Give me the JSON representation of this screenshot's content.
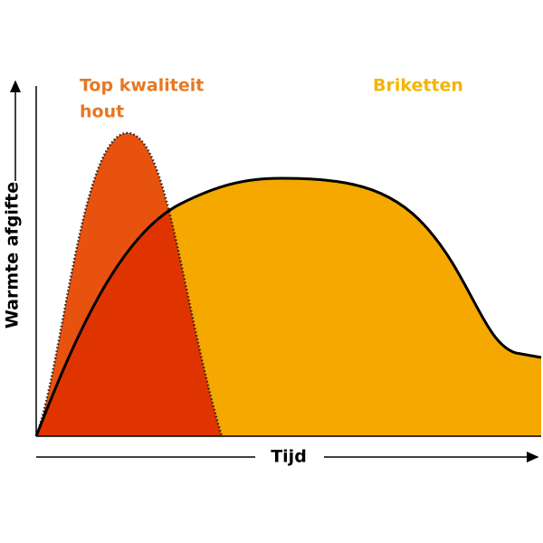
{
  "y_axis_label": "Warmte afgifte",
  "x_axis_label": "Tijd",
  "wood_label": [
    "Top kwaliteit",
    "hout"
  ],
  "briquette_label": "Briketten"
}
